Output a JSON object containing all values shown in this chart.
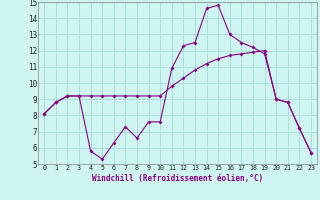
{
  "xlabel": "Windchill (Refroidissement éolien,°C)",
  "background_color": "#cef5f0",
  "grid_color": "#aadddd",
  "line_color": "#880088",
  "xlim": [
    -0.5,
    23.5
  ],
  "ylim": [
    5,
    15
  ],
  "yticks": [
    5,
    6,
    7,
    8,
    9,
    10,
    11,
    12,
    13,
    14,
    15
  ],
  "xticks": [
    0,
    1,
    2,
    3,
    4,
    5,
    6,
    7,
    8,
    9,
    10,
    11,
    12,
    13,
    14,
    15,
    16,
    17,
    18,
    19,
    20,
    21,
    22,
    23
  ],
  "line1_x": [
    0,
    1,
    2,
    3,
    4,
    5,
    6,
    7,
    8,
    9,
    10,
    11,
    12,
    13,
    14,
    15,
    16,
    17,
    18,
    19,
    20,
    21,
    22,
    23
  ],
  "line1_y": [
    8.1,
    8.8,
    9.2,
    9.2,
    5.8,
    5.3,
    6.3,
    7.3,
    6.6,
    7.6,
    7.6,
    10.9,
    12.3,
    12.5,
    14.6,
    14.8,
    13.0,
    12.5,
    12.2,
    11.8,
    9.0,
    8.8,
    7.2,
    5.7
  ],
  "line2_x": [
    0,
    1,
    2,
    3,
    4,
    5,
    6,
    7,
    8,
    9,
    10,
    11,
    12,
    13,
    14,
    15,
    16,
    17,
    18,
    19,
    20,
    21,
    22,
    23
  ],
  "line2_y": [
    8.1,
    8.8,
    9.2,
    9.2,
    9.2,
    9.2,
    9.2,
    9.2,
    9.2,
    9.2,
    9.2,
    9.8,
    10.3,
    10.8,
    11.2,
    11.5,
    11.7,
    11.8,
    11.9,
    12.0,
    9.0,
    8.8,
    7.2,
    5.7
  ]
}
